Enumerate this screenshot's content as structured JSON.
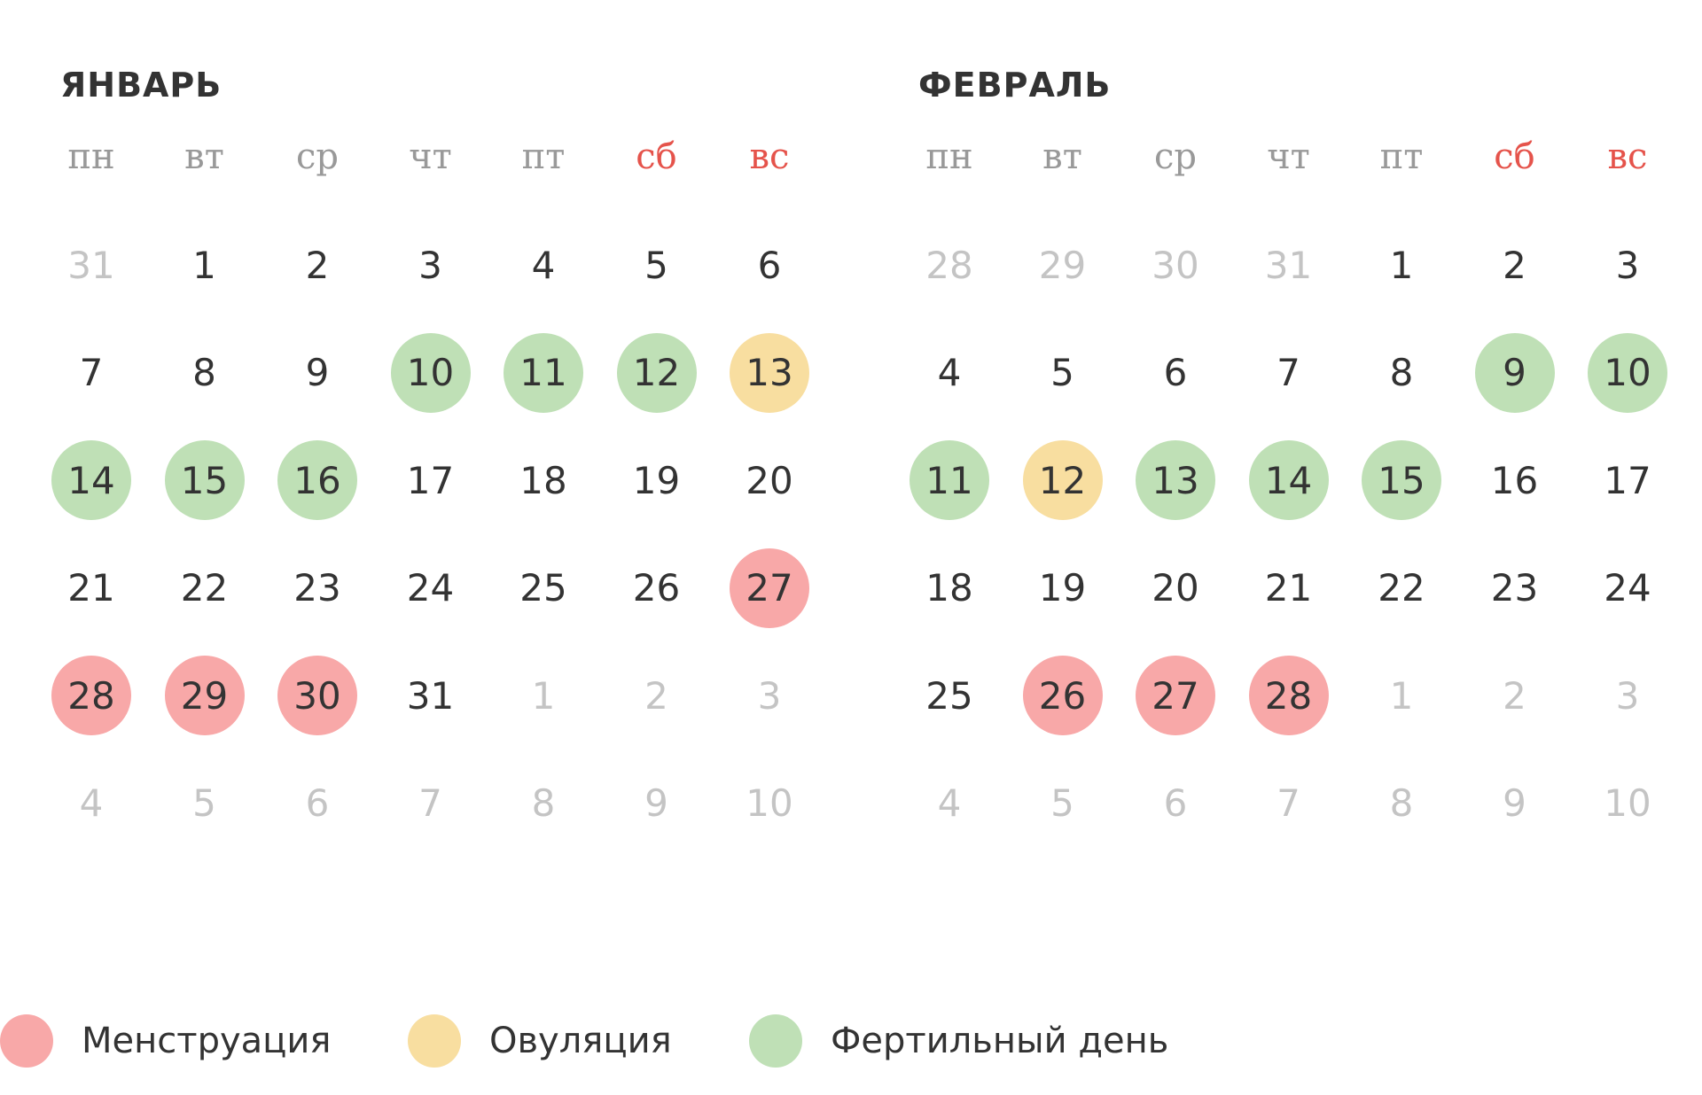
{
  "colors": {
    "menstruation": "#f8a8a8",
    "ovulation": "#f8dea0",
    "fertile": "#bfe0b6",
    "weekend_label": "#e5534b",
    "muted_day": "#c4c4c4"
  },
  "weekdays": [
    {
      "label": "пн",
      "weekend": false
    },
    {
      "label": "вт",
      "weekend": false
    },
    {
      "label": "ср",
      "weekend": false
    },
    {
      "label": "чт",
      "weekend": false
    },
    {
      "label": "пт",
      "weekend": false
    },
    {
      "label": "сб",
      "weekend": true
    },
    {
      "label": "вс",
      "weekend": true
    }
  ],
  "months": [
    {
      "title": "ЯНВАРЬ",
      "weeks": [
        [
          {
            "d": "31",
            "m": true
          },
          {
            "d": "1"
          },
          {
            "d": "2"
          },
          {
            "d": "3"
          },
          {
            "d": "4"
          },
          {
            "d": "5"
          },
          {
            "d": "6"
          }
        ],
        [
          {
            "d": "7"
          },
          {
            "d": "8"
          },
          {
            "d": "9"
          },
          {
            "d": "10",
            "s": "fertile"
          },
          {
            "d": "11",
            "s": "fertile"
          },
          {
            "d": "12",
            "s": "fertile"
          },
          {
            "d": "13",
            "s": "ovulation"
          }
        ],
        [
          {
            "d": "14",
            "s": "fertile"
          },
          {
            "d": "15",
            "s": "fertile"
          },
          {
            "d": "16",
            "s": "fertile"
          },
          {
            "d": "17"
          },
          {
            "d": "18"
          },
          {
            "d": "19"
          },
          {
            "d": "20"
          }
        ],
        [
          {
            "d": "21"
          },
          {
            "d": "22"
          },
          {
            "d": "23"
          },
          {
            "d": "24"
          },
          {
            "d": "25"
          },
          {
            "d": "26"
          },
          {
            "d": "27",
            "s": "menstruation"
          }
        ],
        [
          {
            "d": "28",
            "s": "menstruation"
          },
          {
            "d": "29",
            "s": "menstruation"
          },
          {
            "d": "30",
            "s": "menstruation"
          },
          {
            "d": "31"
          },
          {
            "d": "1",
            "m": true
          },
          {
            "d": "2",
            "m": true
          },
          {
            "d": "3",
            "m": true
          }
        ],
        [
          {
            "d": "4",
            "m": true
          },
          {
            "d": "5",
            "m": true
          },
          {
            "d": "6",
            "m": true
          },
          {
            "d": "7",
            "m": true
          },
          {
            "d": "8",
            "m": true
          },
          {
            "d": "9",
            "m": true
          },
          {
            "d": "10",
            "m": true
          }
        ]
      ]
    },
    {
      "title": "ФЕВРАЛЬ",
      "weeks": [
        [
          {
            "d": "28",
            "m": true
          },
          {
            "d": "29",
            "m": true
          },
          {
            "d": "30",
            "m": true
          },
          {
            "d": "31",
            "m": true
          },
          {
            "d": "1"
          },
          {
            "d": "2"
          },
          {
            "d": "3"
          }
        ],
        [
          {
            "d": "4"
          },
          {
            "d": "5"
          },
          {
            "d": "6"
          },
          {
            "d": "7"
          },
          {
            "d": "8"
          },
          {
            "d": "9",
            "s": "fertile"
          },
          {
            "d": "10",
            "s": "fertile"
          }
        ],
        [
          {
            "d": "11",
            "s": "fertile"
          },
          {
            "d": "12",
            "s": "ovulation"
          },
          {
            "d": "13",
            "s": "fertile"
          },
          {
            "d": "14",
            "s": "fertile"
          },
          {
            "d": "15",
            "s": "fertile"
          },
          {
            "d": "16"
          },
          {
            "d": "17"
          }
        ],
        [
          {
            "d": "18"
          },
          {
            "d": "19"
          },
          {
            "d": "20"
          },
          {
            "d": "21"
          },
          {
            "d": "22"
          },
          {
            "d": "23"
          },
          {
            "d": "24"
          }
        ],
        [
          {
            "d": "25"
          },
          {
            "d": "26",
            "s": "menstruation"
          },
          {
            "d": "27",
            "s": "menstruation"
          },
          {
            "d": "28",
            "s": "menstruation"
          },
          {
            "d": "1",
            "m": true
          },
          {
            "d": "2",
            "m": true
          },
          {
            "d": "3",
            "m": true
          }
        ],
        [
          {
            "d": "4",
            "m": true
          },
          {
            "d": "5",
            "m": true
          },
          {
            "d": "6",
            "m": true
          },
          {
            "d": "7",
            "m": true
          },
          {
            "d": "8",
            "m": true
          },
          {
            "d": "9",
            "m": true
          },
          {
            "d": "10",
            "m": true
          }
        ]
      ]
    }
  ],
  "legend": [
    {
      "key": "menstruation",
      "label": "Менструация"
    },
    {
      "key": "ovulation",
      "label": "Овуляция"
    },
    {
      "key": "fertile",
      "label": "Фертильный день"
    }
  ]
}
